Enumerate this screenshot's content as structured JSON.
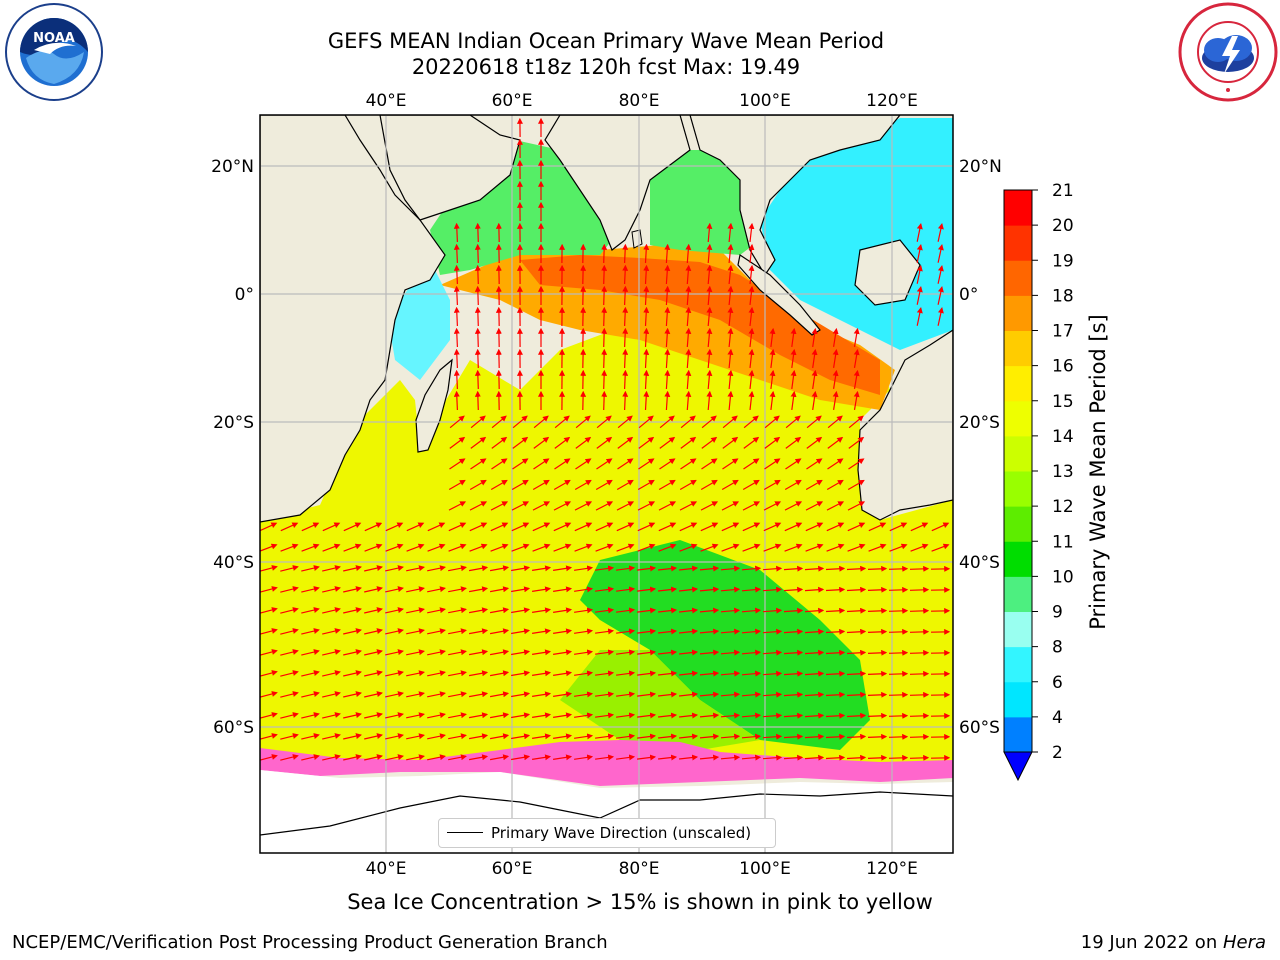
{
  "header": {
    "title_line1": "GEFS MEAN Indian Ocean Primary Wave Mean Period",
    "title_line2": "20220618 t18z 120h fcst   Max: 19.49"
  },
  "logos": {
    "left": "noaa-logo",
    "right": "nws-logo"
  },
  "map": {
    "lon_ticks": [
      "40°E",
      "60°E",
      "80°E",
      "100°E",
      "120°E"
    ],
    "lat_ticks": [
      "20°N",
      "0°",
      "20°S",
      "40°S",
      "60°S"
    ],
    "lon_values": [
      40,
      60,
      80,
      100,
      120
    ],
    "lat_values": [
      20,
      0,
      -20,
      -40,
      -60
    ],
    "extent": {
      "lon_min": 20,
      "lon_max": 130,
      "lat_min": -74,
      "lat_max": 28
    },
    "land_color": "#efecdc",
    "ice_color": "#ffffff",
    "arrow_color": "#ff0000",
    "legend_label": "Primary Wave Direction (unscaled)"
  },
  "colorbar": {
    "label": "Primary Wave Mean Period [s]",
    "ticks": [
      "2",
      "4",
      "6",
      "8",
      "9",
      "10",
      "11",
      "12",
      "13",
      "14",
      "15",
      "16",
      "17",
      "18",
      "19",
      "20",
      "21"
    ],
    "colors": [
      "#0080ff",
      "#00e6ff",
      "#33f5ff",
      "#99fff0",
      "#4def80",
      "#00dd00",
      "#5ded00",
      "#99ff00",
      "#ccff00",
      "#eeff00",
      "#ffee00",
      "#ffcc00",
      "#ff9900",
      "#ff6600",
      "#ff3300",
      "#ff0000"
    ],
    "extend_color": "#0000ff"
  },
  "caption": "Sea Ice Concentration > 15% is shown in pink to yellow",
  "footer": {
    "left": "NCEP/EMC/Verification Post Processing Product Generation Branch",
    "right_prefix": "19 Jun 2022 on ",
    "right_host": "Hera"
  }
}
